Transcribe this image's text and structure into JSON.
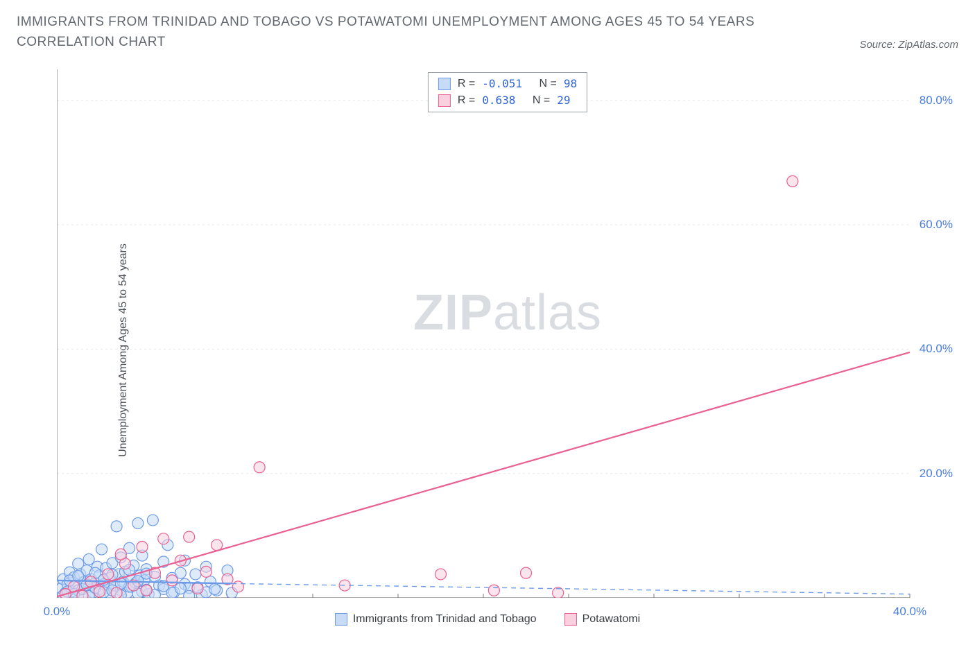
{
  "title": "IMMIGRANTS FROM TRINIDAD AND TOBAGO VS POTAWATOMI UNEMPLOYMENT AMONG AGES 45 TO 54 YEARS CORRELATION CHART",
  "source": "Source: ZipAtlas.com",
  "ylabel": "Unemployment Among Ages 45 to 54 years",
  "watermark_bold": "ZIP",
  "watermark_light": "atlas",
  "chart": {
    "type": "scatter",
    "background_color": "#ffffff",
    "grid_color": "#e5e7ea",
    "axis_color": "#7d7d7d",
    "tick_label_color": "#4a7ddc",
    "xlim": [
      0,
      40
    ],
    "ylim": [
      0,
      85
    ],
    "xtick_values": [
      0,
      40
    ],
    "xtick_labels": [
      "0.0%",
      "40.0%"
    ],
    "ytick_values": [
      20,
      40,
      60,
      80
    ],
    "ytick_labels": [
      "20.0%",
      "40.0%",
      "60.0%",
      "80.0%"
    ],
    "marker_radius": 8,
    "marker_opacity": 0.55,
    "series": [
      {
        "name": "Immigrants from Trinidad and Tobago",
        "color": "#6d9be8",
        "fill": "#c7daf6",
        "R": "-0.051",
        "N": "98",
        "trend_solid": {
          "x1": 0,
          "y1": 2.8,
          "x2": 8.2,
          "y2": 2.3,
          "width": 2.4
        },
        "trend_dashed": {
          "x1": 8.2,
          "y1": 2.3,
          "x2": 40,
          "y2": 0.6,
          "dash": "7,6",
          "width": 1.4
        },
        "points": [
          [
            0.2,
            1.5
          ],
          [
            0.3,
            3.0
          ],
          [
            0.4,
            0.8
          ],
          [
            0.5,
            2.2
          ],
          [
            0.6,
            4.1
          ],
          [
            0.7,
            1.0
          ],
          [
            0.8,
            3.3
          ],
          [
            0.9,
            2.0
          ],
          [
            1.0,
            5.5
          ],
          [
            1.0,
            1.2
          ],
          [
            1.1,
            3.8
          ],
          [
            1.2,
            0.5
          ],
          [
            1.3,
            2.6
          ],
          [
            1.4,
            4.4
          ],
          [
            1.5,
            1.8
          ],
          [
            1.5,
            6.2
          ],
          [
            1.6,
            3.0
          ],
          [
            1.7,
            0.9
          ],
          [
            1.8,
            2.4
          ],
          [
            1.9,
            5.0
          ],
          [
            2.0,
            1.4
          ],
          [
            2.0,
            3.6
          ],
          [
            2.1,
            7.8
          ],
          [
            2.2,
            2.2
          ],
          [
            2.3,
            4.8
          ],
          [
            2.4,
            1.6
          ],
          [
            2.5,
            3.2
          ],
          [
            2.5,
            0.7
          ],
          [
            2.6,
            5.6
          ],
          [
            2.7,
            2.0
          ],
          [
            2.8,
            11.5
          ],
          [
            2.9,
            3.8
          ],
          [
            3.0,
            1.2
          ],
          [
            3.0,
            6.5
          ],
          [
            3.1,
            2.6
          ],
          [
            3.2,
            4.2
          ],
          [
            3.3,
            0.8
          ],
          [
            3.4,
            8.0
          ],
          [
            3.5,
            3.0
          ],
          [
            3.5,
            1.8
          ],
          [
            3.6,
            5.2
          ],
          [
            3.7,
            2.4
          ],
          [
            3.8,
            12.0
          ],
          [
            3.9,
            3.6
          ],
          [
            4.0,
            1.0
          ],
          [
            4.0,
            6.8
          ],
          [
            4.1,
            2.8
          ],
          [
            4.2,
            4.6
          ],
          [
            4.3,
            0.6
          ],
          [
            4.5,
            12.5
          ],
          [
            4.6,
            3.4
          ],
          [
            4.8,
            2.0
          ],
          [
            5.0,
            5.8
          ],
          [
            5.0,
            1.4
          ],
          [
            5.2,
            8.5
          ],
          [
            5.4,
            3.2
          ],
          [
            5.5,
            0.9
          ],
          [
            5.8,
            4.0
          ],
          [
            6.0,
            2.2
          ],
          [
            6.0,
            6.0
          ],
          [
            6.2,
            1.6
          ],
          [
            6.5,
            3.8
          ],
          [
            6.8,
            0.5
          ],
          [
            7.0,
            5.0
          ],
          [
            7.2,
            2.6
          ],
          [
            7.5,
            1.2
          ],
          [
            8.0,
            4.4
          ],
          [
            8.2,
            0.8
          ],
          [
            0.3,
            0.4
          ],
          [
            0.5,
            1.0
          ],
          [
            0.8,
            0.6
          ],
          [
            1.2,
            1.4
          ],
          [
            1.5,
            0.3
          ],
          [
            1.8,
            1.6
          ],
          [
            2.2,
            0.9
          ],
          [
            2.6,
            1.2
          ],
          [
            3.0,
            0.4
          ],
          [
            3.4,
            1.8
          ],
          [
            3.8,
            0.7
          ],
          [
            4.2,
            1.3
          ],
          [
            4.6,
            0.5
          ],
          [
            5.0,
            1.9
          ],
          [
            5.4,
            0.8
          ],
          [
            5.8,
            1.5
          ],
          [
            6.2,
            0.3
          ],
          [
            6.6,
            1.7
          ],
          [
            7.0,
            0.9
          ],
          [
            7.4,
            1.4
          ],
          [
            0.6,
            2.8
          ],
          [
            1.0,
            3.5
          ],
          [
            1.4,
            2.1
          ],
          [
            1.8,
            4.0
          ],
          [
            2.2,
            2.9
          ],
          [
            2.6,
            3.7
          ],
          [
            3.0,
            2.3
          ],
          [
            3.4,
            4.5
          ],
          [
            3.8,
            2.7
          ],
          [
            4.2,
            3.9
          ]
        ]
      },
      {
        "name": "Potawatomi",
        "color": "#e96091",
        "fill": "#f8d0de",
        "R": "0.638",
        "N": "29",
        "trend_solid": {
          "x1": 0,
          "y1": 0.2,
          "x2": 40,
          "y2": 39.5,
          "width": 2.2
        },
        "trend_dashed": null,
        "points": [
          [
            0.4,
            0.6
          ],
          [
            0.8,
            1.8
          ],
          [
            1.2,
            0.3
          ],
          [
            1.6,
            2.6
          ],
          [
            2.0,
            1.0
          ],
          [
            2.4,
            3.8
          ],
          [
            2.8,
            0.8
          ],
          [
            3.2,
            5.5
          ],
          [
            3.6,
            2.0
          ],
          [
            4.0,
            8.2
          ],
          [
            4.2,
            1.2
          ],
          [
            4.6,
            4.0
          ],
          [
            5.0,
            9.5
          ],
          [
            5.4,
            2.8
          ],
          [
            5.8,
            6.0
          ],
          [
            6.2,
            9.8
          ],
          [
            6.6,
            1.5
          ],
          [
            7.0,
            4.2
          ],
          [
            7.5,
            8.5
          ],
          [
            8.0,
            3.0
          ],
          [
            8.5,
            1.8
          ],
          [
            9.5,
            21.0
          ],
          [
            13.5,
            2.0
          ],
          [
            18.0,
            3.8
          ],
          [
            20.5,
            1.2
          ],
          [
            22.0,
            4.0
          ],
          [
            23.5,
            0.8
          ],
          [
            34.5,
            67.0
          ],
          [
            3.0,
            7.0
          ]
        ]
      }
    ],
    "legend": [
      {
        "swatch_fill": "#c7daf6",
        "swatch_border": "#6d9be8",
        "label": "Immigrants from Trinidad and Tobago"
      },
      {
        "swatch_fill": "#f8d0de",
        "swatch_border": "#e96091",
        "label": "Potawatomi"
      }
    ],
    "stats_labels": {
      "R": "R =",
      "N": "N ="
    }
  }
}
